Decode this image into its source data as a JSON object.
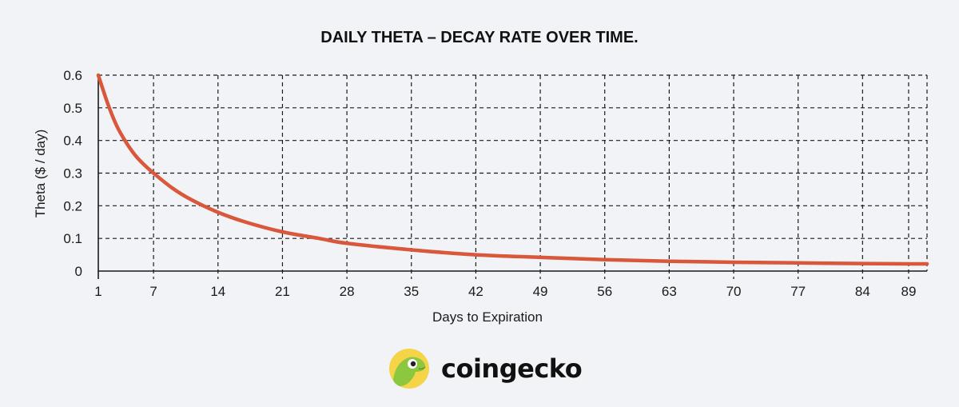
{
  "brand": {
    "name": "coingecko",
    "logo": "gecko-logo-icon",
    "accent": "#8dc63f"
  },
  "chart_data": {
    "type": "line",
    "title": "DAILY THETA – DECAY RATE OVER TIME.",
    "xlabel": "Days to Expiration",
    "ylabel": "Theta ($ / day)",
    "xlim": [
      1,
      91
    ],
    "ylim": [
      0,
      0.6
    ],
    "xticks": [
      1,
      7,
      14,
      21,
      28,
      35,
      42,
      49,
      56,
      63,
      70,
      77,
      84,
      89
    ],
    "yticks": [
      0,
      0.1,
      0.2,
      0.3,
      0.4,
      0.5,
      0.6
    ],
    "ytick_labels": [
      "0",
      "0.1",
      "0.2",
      "0.3",
      "0.4",
      "0.5",
      "0.6"
    ],
    "grid": true,
    "grid_style": "dashed",
    "line_color": "#d9573a",
    "series": [
      {
        "x": [
          1,
          2,
          3,
          4,
          5,
          6,
          7,
          9,
          11,
          14,
          17,
          21,
          25,
          28,
          35,
          42,
          49,
          56,
          63,
          70,
          77,
          84,
          89,
          91
        ],
        "values": [
          0.6,
          0.515,
          0.445,
          0.395,
          0.355,
          0.325,
          0.3,
          0.255,
          0.22,
          0.18,
          0.15,
          0.12,
          0.1,
          0.085,
          0.065,
          0.05,
          0.042,
          0.035,
          0.03,
          0.027,
          0.025,
          0.023,
          0.022,
          0.022
        ]
      }
    ]
  }
}
